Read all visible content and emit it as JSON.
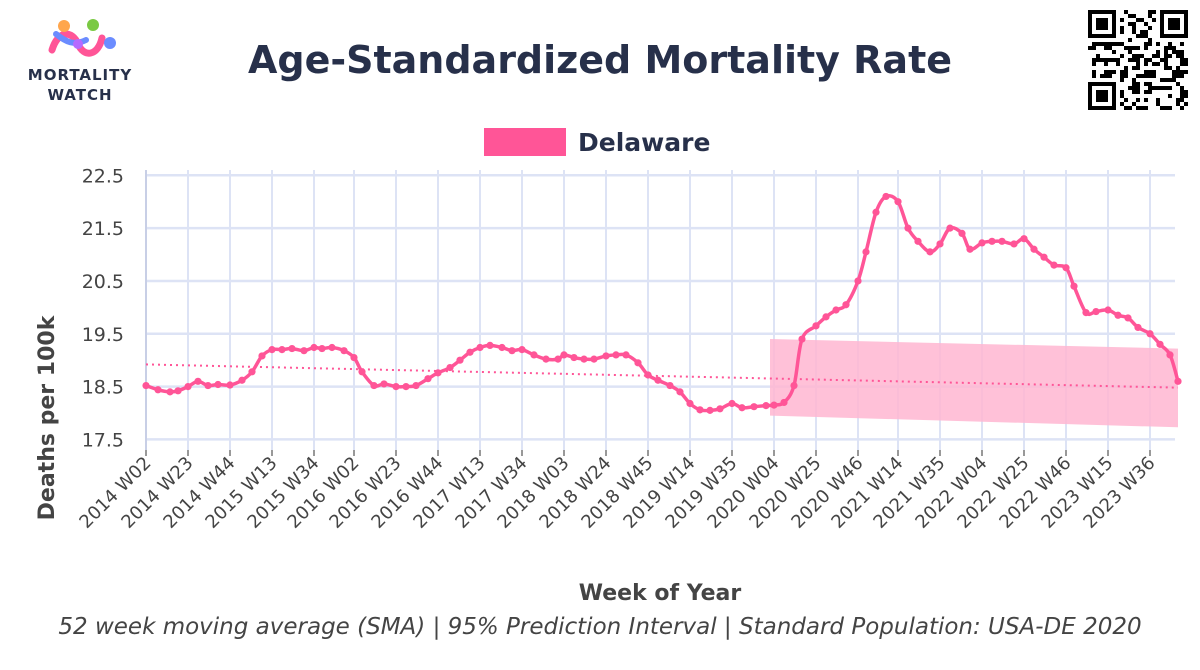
{
  "logo": {
    "line1": "MORTALITY",
    "line2": "WATCH",
    "icon": "mortality-watch-logo-icon"
  },
  "header": {
    "qr_icon": "qr-code-icon"
  },
  "chart_data": {
    "type": "line",
    "title": "Age-Standardized Mortality Rate",
    "xlabel": "Week of Year",
    "ylabel": "Deaths per 100k",
    "caption": "52 week moving average (SMA) | 95% Prediction Interval | Standard Population: USA-DE 2020",
    "ylim": [
      17.3,
      22.6
    ],
    "yticks": [
      17.5,
      18.5,
      19.5,
      20.5,
      21.5,
      22.5
    ],
    "ytick_labels": [
      "17.5",
      "18.5",
      "19.5",
      "20.5",
      "21.5",
      "22.5"
    ],
    "xtick_labels": [
      "2014 W02",
      "2014 W23",
      "2014 W44",
      "2015 W13",
      "2015 W34",
      "2016 W02",
      "2016 W23",
      "2016 W44",
      "2017 W13",
      "2017 W34",
      "2018 W03",
      "2018 W24",
      "2018 W45",
      "2019 W14",
      "2019 W35",
      "2020 W04",
      "2020 W25",
      "2020 W46",
      "2021 W14",
      "2021 W35",
      "2022 W04",
      "2022 W25",
      "2022 W46",
      "2023 W15",
      "2023 W36"
    ],
    "grid": true,
    "legend_position": "top",
    "series": [
      {
        "name": "Delaware",
        "color": "#ff5597",
        "points": [
          [
            "2014 W02",
            18.52
          ],
          [
            "2014 W08",
            18.44
          ],
          [
            "2014 W14",
            18.4
          ],
          [
            "2014 W18",
            18.42
          ],
          [
            "2014 W23",
            18.5
          ],
          [
            "2014 W28",
            18.6
          ],
          [
            "2014 W33",
            18.52
          ],
          [
            "2014 W38",
            18.54
          ],
          [
            "2014 W44",
            18.53
          ],
          [
            "2014 W50",
            18.62
          ],
          [
            "2015 W03",
            18.78
          ],
          [
            "2015 W08",
            19.08
          ],
          [
            "2015 W13",
            19.2
          ],
          [
            "2015 W18",
            19.2
          ],
          [
            "2015 W23",
            19.22
          ],
          [
            "2015 W29",
            19.18
          ],
          [
            "2015 W34",
            19.24
          ],
          [
            "2015 W38",
            19.22
          ],
          [
            "2015 W43",
            19.24
          ],
          [
            "2015 W49",
            19.18
          ],
          [
            "2016 W02",
            19.05
          ],
          [
            "2016 W06",
            18.78
          ],
          [
            "2016 W12",
            18.52
          ],
          [
            "2016 W17",
            18.55
          ],
          [
            "2016 W23",
            18.5
          ],
          [
            "2016 W28",
            18.5
          ],
          [
            "2016 W33",
            18.52
          ],
          [
            "2016 W39",
            18.65
          ],
          [
            "2016 W44",
            18.76
          ],
          [
            "2016 W50",
            18.86
          ],
          [
            "2017 W03",
            19.0
          ],
          [
            "2017 W08",
            19.15
          ],
          [
            "2017 W13",
            19.24
          ],
          [
            "2017 W18",
            19.28
          ],
          [
            "2017 W24",
            19.24
          ],
          [
            "2017 W29",
            19.18
          ],
          [
            "2017 W34",
            19.2
          ],
          [
            "2017 W40",
            19.1
          ],
          [
            "2017 W46",
            19.02
          ],
          [
            "2017 W52",
            19.02
          ],
          [
            "2018 W03",
            19.1
          ],
          [
            "2018 W08",
            19.05
          ],
          [
            "2018 W13",
            19.02
          ],
          [
            "2018 W18",
            19.02
          ],
          [
            "2018 W24",
            19.08
          ],
          [
            "2018 W29",
            19.1
          ],
          [
            "2018 W34",
            19.1
          ],
          [
            "2018 W40",
            18.95
          ],
          [
            "2018 W45",
            18.72
          ],
          [
            "2018 W50",
            18.62
          ],
          [
            "2019 W04",
            18.52
          ],
          [
            "2019 W09",
            18.4
          ],
          [
            "2019 W14",
            18.18
          ],
          [
            "2019 W19",
            18.06
          ],
          [
            "2019 W24",
            18.05
          ],
          [
            "2019 W29",
            18.08
          ],
          [
            "2019 W35",
            18.18
          ],
          [
            "2019 W40",
            18.1
          ],
          [
            "2019 W46",
            18.12
          ],
          [
            "2019 W52",
            18.14
          ],
          [
            "2020 W04",
            18.15
          ],
          [
            "2020 W09",
            18.2
          ],
          [
            "2020 W14",
            18.52
          ],
          [
            "2020 W18",
            19.4
          ],
          [
            "2020 W25",
            19.65
          ],
          [
            "2020 W30",
            19.82
          ],
          [
            "2020 W35",
            19.95
          ],
          [
            "2020 W40",
            20.05
          ],
          [
            "2020 W46",
            20.5
          ],
          [
            "2020 W50",
            21.05
          ],
          [
            "2021 W03",
            21.8
          ],
          [
            "2021 W08",
            22.1
          ],
          [
            "2021 W14",
            22.0
          ],
          [
            "2021 W19",
            21.5
          ],
          [
            "2021 W24",
            21.25
          ],
          [
            "2021 W30",
            21.05
          ],
          [
            "2021 W35",
            21.2
          ],
          [
            "2021 W40",
            21.5
          ],
          [
            "2021 W46",
            21.4
          ],
          [
            "2021 W50",
            21.1
          ],
          [
            "2022 W04",
            21.22
          ],
          [
            "2022 W09",
            21.25
          ],
          [
            "2022 W14",
            21.25
          ],
          [
            "2022 W20",
            21.2
          ],
          [
            "2022 W25",
            21.3
          ],
          [
            "2022 W30",
            21.1
          ],
          [
            "2022 W35",
            20.95
          ],
          [
            "2022 W40",
            20.8
          ],
          [
            "2022 W46",
            20.75
          ],
          [
            "2022 W50",
            20.4
          ],
          [
            "2023 W04",
            19.9
          ],
          [
            "2023 W09",
            19.92
          ],
          [
            "2023 W15",
            19.95
          ],
          [
            "2023 W20",
            19.85
          ],
          [
            "2023 W25",
            19.8
          ],
          [
            "2023 W30",
            19.62
          ],
          [
            "2023 W36",
            19.5
          ],
          [
            "2023 W41",
            19.3
          ],
          [
            "2023 W46",
            19.1
          ],
          [
            "2023 W50",
            18.6
          ]
        ]
      }
    ],
    "trend_line": {
      "x_start": "2014 W02",
      "y_start": 18.92,
      "x_end": "2023 W50",
      "y_end": 18.48,
      "style": "dotted"
    },
    "prediction_interval": {
      "x_start": "2020 W02",
      "x_end": "2023 W50",
      "upper": [
        19.4,
        19.22
      ],
      "lower": [
        17.95,
        17.73
      ],
      "fill": "#ffb6d1"
    }
  }
}
